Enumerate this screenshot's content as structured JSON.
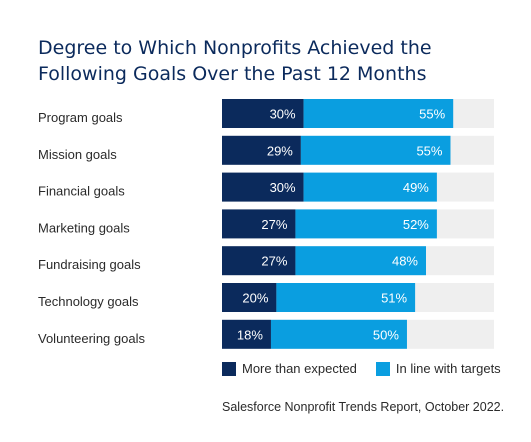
{
  "title_line1": "Degree to Which Nonprofits Achieved the",
  "title_line2": "Following Goals Over the Past 12 Months",
  "source": "Salesforce Nonprofit Trends Report, October 2022.",
  "colors": {
    "more_than_expected": "#0b2a5c",
    "in_line_with_targets": "#0a9ee0",
    "track": "#efefef"
  },
  "chart_data": {
    "type": "bar",
    "orientation": "horizontal",
    "stacked": true,
    "categories": [
      "Program goals",
      "Mission goals",
      "Financial goals",
      "Marketing goals",
      "Fundraising goals",
      "Technology goals",
      "Volunteering goals"
    ],
    "series": [
      {
        "name": "More than expected",
        "values": [
          30,
          29,
          30,
          27,
          27,
          20,
          18
        ],
        "labels": [
          "30%",
          "29%",
          "30%",
          "27%",
          "27%",
          "20%",
          "18%"
        ]
      },
      {
        "name": "In line with targets",
        "values": [
          55,
          55,
          49,
          52,
          48,
          51,
          50
        ],
        "labels": [
          "55%",
          "55%",
          "49%",
          "52%",
          "48%",
          "51%",
          "50%"
        ]
      }
    ],
    "xlim": [
      0,
      100
    ],
    "legend_position": "bottom",
    "grid": false
  }
}
